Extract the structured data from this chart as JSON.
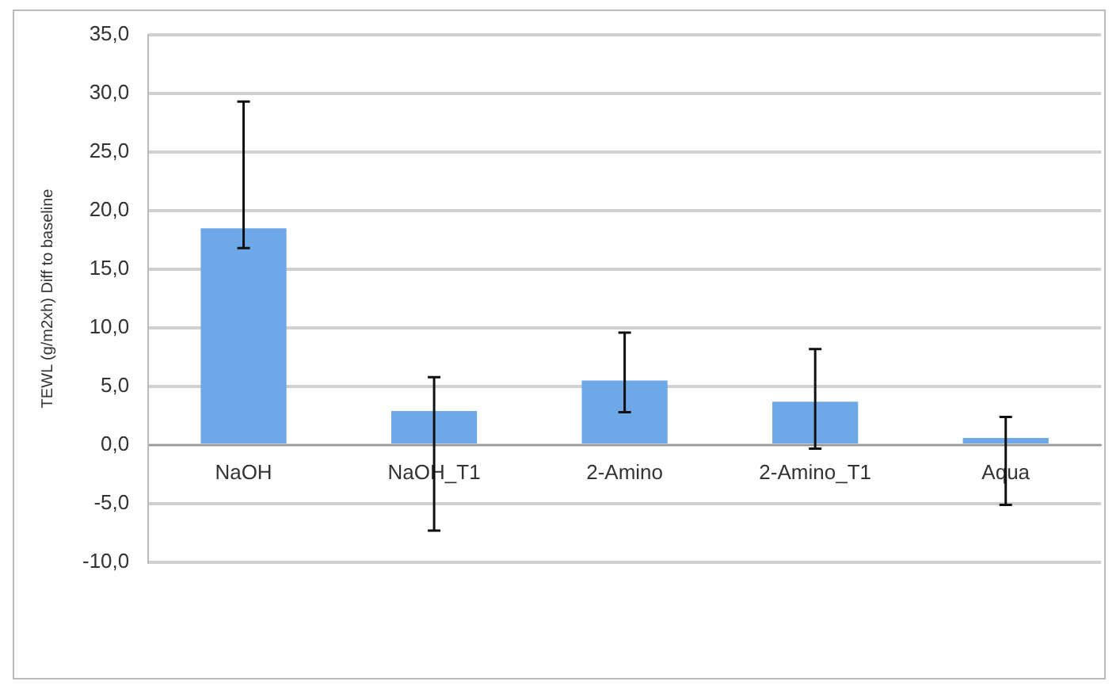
{
  "chart_data": {
    "type": "bar",
    "ylabel": "TEWL (g/m2xh) Diff to baseline",
    "categories": [
      "NaOH",
      "NaOH_T1",
      "2-Amino",
      "2-Amino_T1",
      "Aqua"
    ],
    "values": [
      18.5,
      2.9,
      5.5,
      3.7,
      0.6
    ],
    "errors": [
      [
        16.8,
        29.3
      ],
      [
        -7.3,
        5.8
      ],
      [
        2.8,
        9.6
      ],
      [
        -0.3,
        8.2
      ],
      [
        -5.1,
        2.4
      ]
    ],
    "color": "#6ea8e8",
    "ylim": [
      -10,
      35
    ],
    "yticks": [
      {
        "value": -10,
        "label": "-10,0"
      },
      {
        "value": -5,
        "label": "-5,0"
      },
      {
        "value": 0,
        "label": "0,0"
      },
      {
        "value": 5,
        "label": "5,0"
      },
      {
        "value": 10,
        "label": "10,0"
      },
      {
        "value": 15,
        "label": "15,0"
      },
      {
        "value": 20,
        "label": "20,0"
      },
      {
        "value": 25,
        "label": "25,0"
      },
      {
        "value": 30,
        "label": "30,0"
      },
      {
        "value": 35,
        "label": "35,0"
      }
    ],
    "grid": "y",
    "legend": false
  }
}
